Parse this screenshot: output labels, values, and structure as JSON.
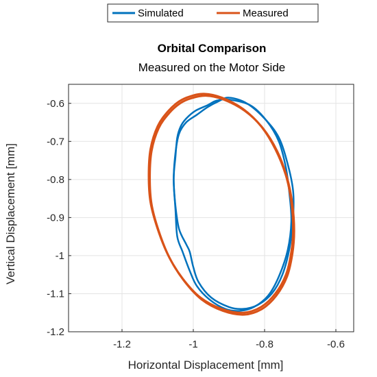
{
  "chart_data": {
    "type": "line",
    "title": "Orbital Comparison",
    "subtitle": "Measured on the Motor Side",
    "xlabel": "Horizontal Displacement [mm]",
    "ylabel": "Vertical Displacement [mm]",
    "xlim": [
      -1.35,
      -0.55
    ],
    "ylim": [
      -1.2,
      -0.55
    ],
    "xticks": [
      -1.2,
      -1.0,
      -0.8,
      -0.6
    ],
    "xtick_labels": [
      "-1.2",
      "-1",
      "-0.8",
      "-0.6"
    ],
    "yticks": [
      -0.6,
      -0.7,
      -0.8,
      -0.9,
      -1.0,
      -1.1,
      -1.2
    ],
    "ytick_labels": [
      "-0.6",
      "-0.7",
      "-0.8",
      "-0.9",
      "-1",
      "-1.1",
      "-1.2"
    ],
    "grid": true,
    "legend_position": "top-center",
    "series": [
      {
        "name": "Simulated",
        "color": "#0072BD",
        "closed": true,
        "x": [
          -0.9,
          -0.85,
          -0.8,
          -0.76,
          -0.735,
          -0.72,
          -0.72,
          -0.73,
          -0.75,
          -0.78,
          -0.82,
          -0.86,
          -0.9,
          -0.95,
          -0.985,
          -1.0,
          -1.01,
          -1.02,
          -1.04,
          -1.05,
          -1.055,
          -1.05,
          -1.04,
          -1.02,
          -0.99,
          -0.96,
          -0.93,
          -0.9
        ],
        "y": [
          -0.585,
          -0.6,
          -0.64,
          -0.69,
          -0.76,
          -0.83,
          -0.9,
          -0.98,
          -1.05,
          -1.1,
          -1.13,
          -1.14,
          -1.135,
          -1.11,
          -1.07,
          -1.03,
          -0.99,
          -0.97,
          -0.93,
          -0.87,
          -0.8,
          -0.73,
          -0.68,
          -0.65,
          -0.63,
          -0.61,
          -0.595,
          -0.585
        ]
      },
      {
        "name": "Simulated",
        "color": "#0072BD",
        "closed": true,
        "x": [
          -0.9,
          -0.84,
          -0.795,
          -0.76,
          -0.74,
          -0.73,
          -0.725,
          -0.735,
          -0.76,
          -0.79,
          -0.83,
          -0.87,
          -0.91,
          -0.955,
          -0.99,
          -1.01,
          -1.03,
          -1.045,
          -1.05,
          -1.055,
          -1.05,
          -1.045,
          -1.035,
          -1.02,
          -0.995,
          -0.96,
          -0.935,
          -0.9
        ],
        "y": [
          -0.59,
          -0.605,
          -0.645,
          -0.7,
          -0.77,
          -0.84,
          -0.91,
          -0.985,
          -1.055,
          -1.105,
          -1.135,
          -1.145,
          -1.14,
          -1.115,
          -1.08,
          -1.04,
          -0.99,
          -0.95,
          -0.88,
          -0.8,
          -0.74,
          -0.69,
          -0.66,
          -0.64,
          -0.62,
          -0.605,
          -0.593,
          -0.59
        ]
      },
      {
        "name": "Measured",
        "color": "#D95319",
        "closed": true,
        "x": [
          -0.97,
          -0.92,
          -0.86,
          -0.81,
          -0.77,
          -0.74,
          -0.725,
          -0.72,
          -0.725,
          -0.74,
          -0.77,
          -0.81,
          -0.86,
          -0.92,
          -0.98,
          -1.03,
          -1.07,
          -1.1,
          -1.12,
          -1.125,
          -1.12,
          -1.1,
          -1.07,
          -1.04,
          -1.01,
          -0.97
        ],
        "y": [
          -0.575,
          -0.585,
          -0.615,
          -0.66,
          -0.72,
          -0.79,
          -0.86,
          -0.93,
          -0.99,
          -1.05,
          -1.1,
          -1.135,
          -1.15,
          -1.14,
          -1.11,
          -1.06,
          -1.0,
          -0.93,
          -0.86,
          -0.79,
          -0.72,
          -0.66,
          -0.62,
          -0.595,
          -0.582,
          -0.575
        ]
      },
      {
        "name": "Measured",
        "color": "#D95319",
        "closed": true,
        "x": [
          -0.965,
          -0.915,
          -0.855,
          -0.805,
          -0.765,
          -0.737,
          -0.722,
          -0.717,
          -0.722,
          -0.737,
          -0.767,
          -0.807,
          -0.857,
          -0.917,
          -0.977,
          -1.027,
          -1.067,
          -1.097,
          -1.117,
          -1.122,
          -1.117,
          -1.097,
          -1.067,
          -1.037,
          -1.007,
          -0.965
        ],
        "y": [
          -0.58,
          -0.59,
          -0.62,
          -0.665,
          -0.725,
          -0.795,
          -0.865,
          -0.935,
          -0.995,
          -1.055,
          -1.105,
          -1.14,
          -1.155,
          -1.145,
          -1.115,
          -1.065,
          -1.005,
          -0.935,
          -0.865,
          -0.795,
          -0.725,
          -0.665,
          -0.625,
          -0.6,
          -0.587,
          -0.58
        ]
      }
    ],
    "legend": [
      {
        "name": "Simulated",
        "color": "#0072BD"
      },
      {
        "name": "Measured",
        "color": "#D95319"
      }
    ]
  }
}
